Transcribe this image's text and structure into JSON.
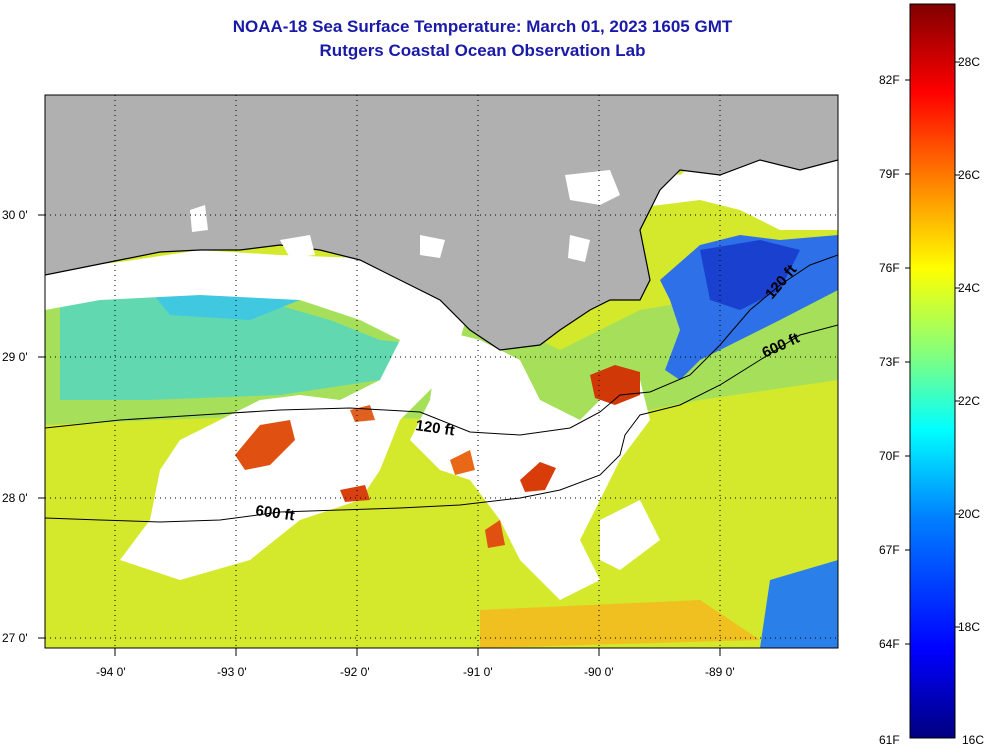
{
  "title": {
    "line1": "NOAA-18 Sea Surface Temperature:  March 01, 2023 1605 GMT",
    "line2": "Rutgers Coastal Ocean Observation Lab"
  },
  "map": {
    "lon_ticks": [
      "-94 0'",
      "-93 0'",
      "-92 0'",
      "-91 0'",
      "-90 0'",
      "-89 0'"
    ],
    "lat_ticks": [
      "30 0'",
      "29 0'",
      "28 0'",
      "27 0'"
    ],
    "contours": [
      {
        "label": "120 ft"
      },
      {
        "label": "600 ft"
      },
      {
        "label": "120 ft"
      },
      {
        "label": "600 ft"
      }
    ],
    "colors": {
      "land": "#b0b0b0",
      "cloud": "#ffffff",
      "water_main": "#d9ec2a",
      "water_cool": "#8ee07a",
      "water_cyan": "#40d0d0",
      "water_blue": "#2060e0",
      "water_warm": "#f0a020",
      "water_hot": "#d03000"
    }
  },
  "colorbar": {
    "fahrenheit": [
      "82F",
      "79F",
      "76F",
      "73F",
      "70F",
      "67F",
      "64F",
      "61F"
    ],
    "celsius": [
      "28C",
      "26C",
      "24C",
      "22C",
      "20C",
      "18C",
      "16C"
    ],
    "gradient": [
      "#800000",
      "#ff0000",
      "#ff8000",
      "#ffff00",
      "#80ff80",
      "#00ffff",
      "#0080ff",
      "#0000ff",
      "#000080"
    ]
  }
}
